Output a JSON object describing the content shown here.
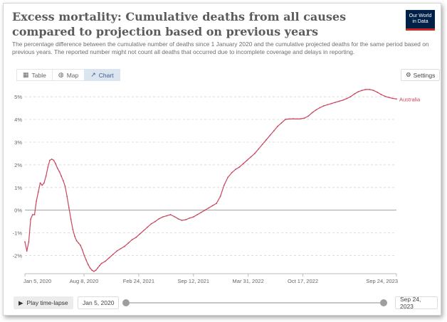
{
  "header": {
    "title": "Excess mortality: Cumulative deaths from all causes compared to projection based on previous years",
    "subtitle": "The percentage difference between the cumulative number of deaths since 1 January 2020 and the cumulative projected deaths for the same period based on previous years. The reported number might not count all deaths that occurred due to incomplete coverage and delays in reporting.",
    "logo_line1": "Our World",
    "logo_line2": "in Data"
  },
  "tabs": [
    {
      "label": "Table",
      "icon": "table-icon",
      "active": false
    },
    {
      "label": "Map",
      "icon": "globe-icon",
      "active": false
    },
    {
      "label": "Chart",
      "icon": "chart-line-icon",
      "active": true
    }
  ],
  "settings_label": "Settings",
  "controls": {
    "play_label": "Play time-lapse",
    "start_date": "Jan 5, 2020",
    "end_date": "Sep 24, 2023",
    "slider_start_fraction": 0,
    "slider_end_fraction": 1
  },
  "chart_data": {
    "type": "line",
    "title": "",
    "xlabel": "",
    "ylabel": "",
    "y_unit": "%",
    "ylim": [
      -2.8,
      5.6
    ],
    "y_ticks": [
      -2,
      -1,
      0,
      1,
      2,
      3,
      4,
      5
    ],
    "y_tick_labels": [
      "-2%",
      "-1%",
      "0%",
      "1%",
      "2%",
      "3%",
      "4%",
      "5%"
    ],
    "x_range": [
      "2020-01-05",
      "2023-09-24"
    ],
    "x_ticks": [
      "2020-01-05",
      "2020-08-08",
      "2021-02-24",
      "2021-09-12",
      "2022-03-31",
      "2022-10-17",
      "2023-09-24"
    ],
    "x_tick_labels": [
      "Jan 5, 2020",
      "Aug 8, 2020",
      "Feb 24, 2021",
      "Sep 12, 2021",
      "Mar 31, 2022",
      "Oct 17, 2022",
      "Sep 24, 2023"
    ],
    "grid": "horizontal dashed",
    "series_color": "#c9465d",
    "series": [
      {
        "name": "Australia",
        "points": [
          [
            "2020-01-05",
            -1.4
          ],
          [
            "2020-01-12",
            -1.8
          ],
          [
            "2020-01-19",
            -1.4
          ],
          [
            "2020-01-26",
            -0.4
          ],
          [
            "2020-02-02",
            -0.2
          ],
          [
            "2020-02-09",
            -0.2
          ],
          [
            "2020-02-16",
            0.4
          ],
          [
            "2020-02-23",
            0.8
          ],
          [
            "2020-03-01",
            1.2
          ],
          [
            "2020-03-08",
            1.1
          ],
          [
            "2020-03-15",
            1.2
          ],
          [
            "2020-03-22",
            1.5
          ],
          [
            "2020-03-29",
            1.9
          ],
          [
            "2020-04-05",
            2.2
          ],
          [
            "2020-04-12",
            2.25
          ],
          [
            "2020-04-19",
            2.2
          ],
          [
            "2020-04-26",
            2.05
          ],
          [
            "2020-05-03",
            1.85
          ],
          [
            "2020-05-10",
            1.7
          ],
          [
            "2020-05-17",
            1.5
          ],
          [
            "2020-05-24",
            1.3
          ],
          [
            "2020-05-31",
            1.05
          ],
          [
            "2020-06-07",
            0.6
          ],
          [
            "2020-06-14",
            0.1
          ],
          [
            "2020-06-21",
            -0.4
          ],
          [
            "2020-06-28",
            -0.85
          ],
          [
            "2020-07-05",
            -1.15
          ],
          [
            "2020-07-12",
            -1.35
          ],
          [
            "2020-07-19",
            -1.45
          ],
          [
            "2020-07-26",
            -1.55
          ],
          [
            "2020-08-02",
            -1.75
          ],
          [
            "2020-08-09",
            -2.0
          ],
          [
            "2020-08-16",
            -2.2
          ],
          [
            "2020-08-23",
            -2.4
          ],
          [
            "2020-08-30",
            -2.55
          ],
          [
            "2020-09-06",
            -2.65
          ],
          [
            "2020-09-13",
            -2.7
          ],
          [
            "2020-09-20",
            -2.65
          ],
          [
            "2020-09-27",
            -2.55
          ],
          [
            "2020-10-04",
            -2.45
          ],
          [
            "2020-10-11",
            -2.35
          ],
          [
            "2020-10-25",
            -2.25
          ],
          [
            "2020-11-08",
            -2.1
          ],
          [
            "2020-11-22",
            -1.95
          ],
          [
            "2020-12-06",
            -1.8
          ],
          [
            "2020-12-20",
            -1.7
          ],
          [
            "2021-01-03",
            -1.6
          ],
          [
            "2021-01-17",
            -1.45
          ],
          [
            "2021-01-31",
            -1.3
          ],
          [
            "2021-02-14",
            -1.2
          ],
          [
            "2021-02-28",
            -1.05
          ],
          [
            "2021-03-14",
            -0.9
          ],
          [
            "2021-03-28",
            -0.75
          ],
          [
            "2021-04-11",
            -0.6
          ],
          [
            "2021-04-25",
            -0.5
          ],
          [
            "2021-05-09",
            -0.38
          ],
          [
            "2021-05-23",
            -0.3
          ],
          [
            "2021-06-06",
            -0.25
          ],
          [
            "2021-06-20",
            -0.2
          ],
          [
            "2021-07-04",
            -0.28
          ],
          [
            "2021-07-18",
            -0.38
          ],
          [
            "2021-08-01",
            -0.45
          ],
          [
            "2021-08-15",
            -0.42
          ],
          [
            "2021-08-29",
            -0.35
          ],
          [
            "2021-09-12",
            -0.3
          ],
          [
            "2021-09-26",
            -0.2
          ],
          [
            "2021-10-10",
            -0.1
          ],
          [
            "2021-10-24",
            0.0
          ],
          [
            "2021-11-07",
            0.1
          ],
          [
            "2021-11-21",
            0.2
          ],
          [
            "2021-12-05",
            0.3
          ],
          [
            "2021-12-19",
            0.6
          ],
          [
            "2022-01-02",
            1.1
          ],
          [
            "2022-01-16",
            1.45
          ],
          [
            "2022-01-30",
            1.65
          ],
          [
            "2022-02-13",
            1.8
          ],
          [
            "2022-02-27",
            1.9
          ],
          [
            "2022-03-13",
            2.05
          ],
          [
            "2022-03-27",
            2.2
          ],
          [
            "2022-04-10",
            2.35
          ],
          [
            "2022-04-24",
            2.5
          ],
          [
            "2022-05-08",
            2.7
          ],
          [
            "2022-05-22",
            2.9
          ],
          [
            "2022-06-05",
            3.1
          ],
          [
            "2022-06-19",
            3.3
          ],
          [
            "2022-07-03",
            3.5
          ],
          [
            "2022-07-17",
            3.7
          ],
          [
            "2022-07-31",
            3.85
          ],
          [
            "2022-08-14",
            4.0
          ],
          [
            "2022-08-28",
            4.02
          ],
          [
            "2022-09-11",
            4.03
          ],
          [
            "2022-09-25",
            4.02
          ],
          [
            "2022-10-09",
            4.03
          ],
          [
            "2022-10-23",
            4.06
          ],
          [
            "2022-11-06",
            4.15
          ],
          [
            "2022-11-20",
            4.3
          ],
          [
            "2022-12-04",
            4.42
          ],
          [
            "2022-12-18",
            4.52
          ],
          [
            "2023-01-01",
            4.6
          ],
          [
            "2023-01-15",
            4.65
          ],
          [
            "2023-01-29",
            4.7
          ],
          [
            "2023-02-12",
            4.75
          ],
          [
            "2023-02-26",
            4.8
          ],
          [
            "2023-03-12",
            4.85
          ],
          [
            "2023-03-26",
            4.92
          ],
          [
            "2023-04-09",
            5.0
          ],
          [
            "2023-04-23",
            5.12
          ],
          [
            "2023-05-07",
            5.22
          ],
          [
            "2023-05-21",
            5.28
          ],
          [
            "2023-06-04",
            5.32
          ],
          [
            "2023-06-18",
            5.32
          ],
          [
            "2023-07-02",
            5.28
          ],
          [
            "2023-07-16",
            5.2
          ],
          [
            "2023-07-30",
            5.1
          ],
          [
            "2023-08-13",
            5.02
          ],
          [
            "2023-08-27",
            4.97
          ],
          [
            "2023-09-10",
            4.93
          ],
          [
            "2023-09-24",
            4.9
          ]
        ]
      }
    ],
    "end_label": "Australia"
  }
}
